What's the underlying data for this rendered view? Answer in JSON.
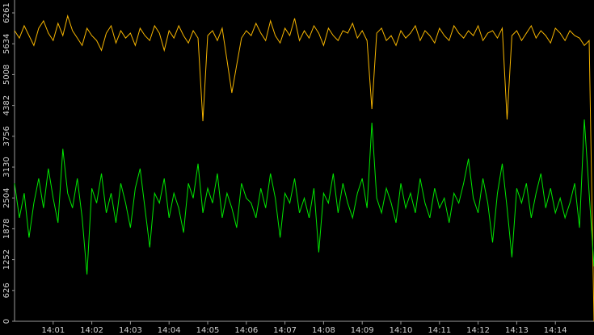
{
  "chart_data": {
    "type": "line",
    "x": [
      840,
      840.125,
      840.25,
      840.375,
      840.5,
      840.625,
      840.75,
      840.875,
      841,
      841.125,
      841.25,
      841.375,
      841.5,
      841.625,
      841.75,
      841.875,
      842,
      842.125,
      842.25,
      842.375,
      842.5,
      842.625,
      842.75,
      842.875,
      843,
      843.125,
      843.25,
      843.375,
      843.5,
      843.625,
      843.75,
      843.875,
      844,
      844.125,
      844.25,
      844.375,
      844.5,
      844.625,
      844.75,
      844.875,
      845,
      845.125,
      845.25,
      845.375,
      845.5,
      845.625,
      845.75,
      845.875,
      846,
      846.125,
      846.25,
      846.375,
      846.5,
      846.625,
      846.75,
      846.875,
      847,
      847.125,
      847.25,
      847.375,
      847.5,
      847.625,
      847.75,
      847.875,
      848,
      848.125,
      848.25,
      848.375,
      848.5,
      848.625,
      848.75,
      848.875,
      849,
      849.125,
      849.25,
      849.375,
      849.5,
      849.625,
      849.75,
      849.875,
      850,
      850.125,
      850.25,
      850.375,
      850.5,
      850.625,
      850.75,
      850.875,
      851,
      851.125,
      851.25,
      851.375,
      851.5,
      851.625,
      851.75,
      851.875,
      852,
      852.125,
      852.25,
      852.375,
      852.5,
      852.625,
      852.75,
      852.875,
      853,
      853.125,
      853.25,
      853.375,
      853.5,
      853.625,
      853.75,
      853.875,
      854,
      854.125,
      854.25,
      854.375,
      854.5,
      854.625,
      854.75,
      854.875,
      855
    ],
    "series": [
      {
        "color": "#f5b400",
        "values": [
          5900,
          5750,
          6000,
          5800,
          5600,
          5950,
          6100,
          5850,
          5700,
          6050,
          5800,
          6200,
          5900,
          5750,
          5600,
          5950,
          5800,
          5700,
          5500,
          5850,
          6000,
          5650,
          5900,
          5750,
          5850,
          5600,
          5950,
          5800,
          5700,
          6000,
          5850,
          5500,
          5900,
          5750,
          6000,
          5800,
          5650,
          5900,
          5750,
          4064,
          5800,
          5900,
          5700,
          5950,
          5300,
          4638,
          5200,
          5750,
          5900,
          5800,
          6050,
          5850,
          5700,
          6100,
          5800,
          5650,
          5950,
          5800,
          6150,
          5700,
          5900,
          5750,
          6000,
          5850,
          5600,
          5950,
          5800,
          5700,
          5900,
          5850,
          6050,
          5750,
          5900,
          5700,
          4310,
          5850,
          5950,
          5700,
          5800,
          5600,
          5900,
          5750,
          5850,
          6000,
          5700,
          5900,
          5800,
          5650,
          5950,
          5800,
          5700,
          6000,
          5850,
          5750,
          5900,
          5800,
          6000,
          5700,
          5850,
          5900,
          5750,
          5950,
          4097,
          5800,
          5900,
          5700,
          5850,
          6000,
          5750,
          5900,
          5800,
          5650,
          5950,
          5850,
          5700,
          5900,
          5800,
          5750,
          5600,
          5700,
          0
        ]
      },
      {
        "color": "#00e600",
        "values": [
          2800,
          2100,
          2600,
          1700,
          2400,
          2900,
          2300,
          3100,
          2500,
          2000,
          3500,
          2600,
          2300,
          2900,
          2100,
          950,
          2700,
          2400,
          3000,
          2200,
          2600,
          2000,
          2800,
          2400,
          1900,
          2700,
          3100,
          2300,
          1500,
          2600,
          2400,
          2900,
          2100,
          2600,
          2300,
          1800,
          2800,
          2500,
          3200,
          2200,
          2700,
          2400,
          3000,
          2100,
          2600,
          2300,
          1900,
          2800,
          2500,
          2400,
          2100,
          2700,
          2300,
          3000,
          2500,
          1700,
          2600,
          2400,
          2900,
          2200,
          2500,
          2100,
          2700,
          1400,
          2600,
          2400,
          3000,
          2200,
          2800,
          2400,
          2100,
          2600,
          2900,
          2300,
          4031,
          2500,
          2200,
          2700,
          2400,
          2000,
          2800,
          2300,
          2600,
          2200,
          2900,
          2400,
          2100,
          2700,
          2300,
          2500,
          2000,
          2600,
          2400,
          2800,
          3300,
          2500,
          2200,
          2900,
          2400,
          1600,
          2600,
          3200,
          2300,
          1300,
          2700,
          2400,
          2800,
          2100,
          2600,
          3000,
          2300,
          2700,
          2200,
          2500,
          2100,
          2400,
          2800,
          1900,
          4097,
          2600,
          1114
        ]
      }
    ],
    "xlim": [
      840,
      855
    ],
    "xticks": [
      {
        "value": 841,
        "label": "14:01"
      },
      {
        "value": 842,
        "label": "14:02"
      },
      {
        "value": 843,
        "label": "14:03"
      },
      {
        "value": 844,
        "label": "14:04"
      },
      {
        "value": 845,
        "label": "14:05"
      },
      {
        "value": 846,
        "label": "14:06"
      },
      {
        "value": 847,
        "label": "14:07"
      },
      {
        "value": 848,
        "label": "14:08"
      },
      {
        "value": 849,
        "label": "14:09"
      },
      {
        "value": 850,
        "label": "14:10"
      },
      {
        "value": 851,
        "label": "14:11"
      },
      {
        "value": 852,
        "label": "14:12"
      },
      {
        "value": 853,
        "label": "14:13"
      },
      {
        "value": 854,
        "label": "14:14"
      }
    ],
    "ylim": [
      0,
      6523
    ],
    "yticks": [
      0,
      626,
      1252,
      1878,
      2504,
      3130,
      3756,
      4382,
      5008,
      5634,
      6261
    ]
  }
}
